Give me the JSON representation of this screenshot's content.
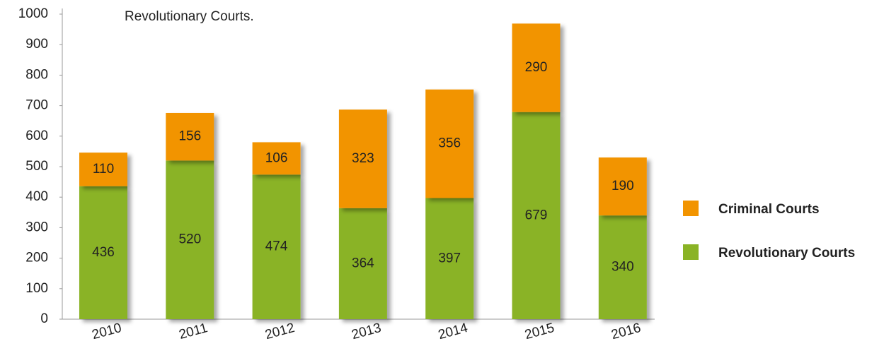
{
  "chart_data": {
    "type": "stacked_bar",
    "title": "Revolutionary Courts.",
    "categories": [
      "2010",
      "2011",
      "2012",
      "2013",
      "2014",
      "2015",
      "2016"
    ],
    "series": [
      {
        "name": "Revolutionary Courts",
        "color": "#8ab325",
        "values": [
          436,
          520,
          474,
          364,
          397,
          679,
          340
        ]
      },
      {
        "name": "Criminal Courts",
        "color": "#f29400",
        "values": [
          110,
          156,
          106,
          323,
          356,
          290,
          190
        ]
      }
    ],
    "ylim": [
      0,
      1000
    ],
    "yticks": [
      0,
      100,
      200,
      300,
      400,
      500,
      600,
      700,
      800,
      900,
      1000
    ],
    "grid": false,
    "legend": "right"
  }
}
